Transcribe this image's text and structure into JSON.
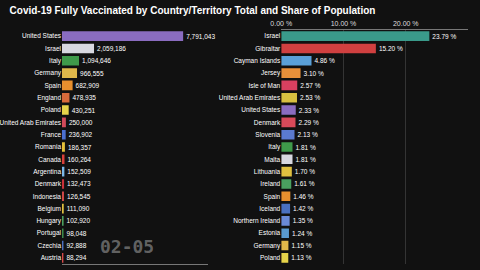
{
  "title": "Covid-19 Fully Vaccinated by Country/Territory Total and Share of Population",
  "annotations": [
    "02-05"
  ],
  "chart_data": [
    {
      "type": "bar",
      "orientation": "horizontal",
      "data_labels": true,
      "tick_labels": "y",
      "grid": false,
      "categories": [
        "United States",
        "Israel",
        "Italy",
        "Germany",
        "Spain",
        "England",
        "Poland",
        "United Arab Emirates",
        "France",
        "Romania",
        "Canada",
        "Argentina",
        "Denmark",
        "Indonesia",
        "Belgium",
        "Hungary",
        "Portugal",
        "Czechia",
        "Austria"
      ],
      "values": [
        7791043,
        2059186,
        1094646,
        966555,
        682909,
        478935,
        430251,
        250000,
        236902,
        186357,
        160264,
        152509,
        132473,
        126545,
        111090,
        102920,
        98048,
        92888,
        88294
      ],
      "value_labels": [
        "7,791,043",
        "2,059,186",
        "1,094,646",
        "966,555",
        "682,909",
        "478,935",
        "430,251",
        "250,000",
        "236,902",
        "186,357",
        "160,264",
        "152,509",
        "132,473",
        "126,545",
        "111,090",
        "102,920",
        "98,048",
        "92,888",
        "88,294"
      ],
      "colors": [
        "#8a6cc0",
        "#d8d8e0",
        "#3f9a4a",
        "#e0b84a",
        "#e8902e",
        "#d86a3a",
        "#e6d34a",
        "#d24a5a",
        "#4a6fd0",
        "#e6c23a",
        "#d8403a",
        "#7ab8e8",
        "#c8303a",
        "#d04848",
        "#e0c040",
        "#4aa060",
        "#3a8a4a",
        "#4a70c0",
        "#d84a4a"
      ],
      "xlim": [
        0,
        9400000
      ]
    },
    {
      "type": "bar",
      "orientation": "horizontal",
      "data_labels": true,
      "tick_labels": true,
      "grid": true,
      "categories": [
        "Israel",
        "Gibraltar",
        "Cayman Islands",
        "Jersey",
        "Isle of Man",
        "United Arab Emirates",
        "United States",
        "Denmark",
        "Slovenia",
        "Italy",
        "Malta",
        "Lithuania",
        "Ireland",
        "Spain",
        "Iceland",
        "Northern Ireland",
        "Estonia",
        "Germany",
        "Poland"
      ],
      "values": [
        23.79,
        15.2,
        4.86,
        3.1,
        2.57,
        2.53,
        2.33,
        2.29,
        2.13,
        1.81,
        1.81,
        1.7,
        1.61,
        1.46,
        1.42,
        1.35,
        1.24,
        1.15,
        1.13
      ],
      "value_labels": [
        "23.79 %",
        "15.20 %",
        "4.86 %",
        "3.10 %",
        "2.57 %",
        "2.53 %",
        "2.33 %",
        "2.29 %",
        "2.13 %",
        "1.81 %",
        "1.81 %",
        "1.70 %",
        "1.61 %",
        "1.46 %",
        "1.42 %",
        "1.35 %",
        "1.24 %",
        "1.15 %",
        "1.13 %"
      ],
      "colors": [
        "#3a9a8a",
        "#d04040",
        "#5aa0d8",
        "#e8903a",
        "#d84060",
        "#d8c040",
        "#8a6cc0",
        "#d84a5a",
        "#5a7ad0",
        "#3f9a4a",
        "#d8d8e0",
        "#e0c040",
        "#4aa060",
        "#e8902e",
        "#4a70c0",
        "#6a8ad8",
        "#5a9ad0",
        "#e0b84a",
        "#e6d34a"
      ],
      "xlim": [
        0,
        30
      ],
      "xticks": [
        {
          "value": 0,
          "label": "0.00 %"
        },
        {
          "value": 10,
          "label": "10.00 %"
        },
        {
          "value": 20,
          "label": "20.00 %"
        }
      ]
    }
  ]
}
